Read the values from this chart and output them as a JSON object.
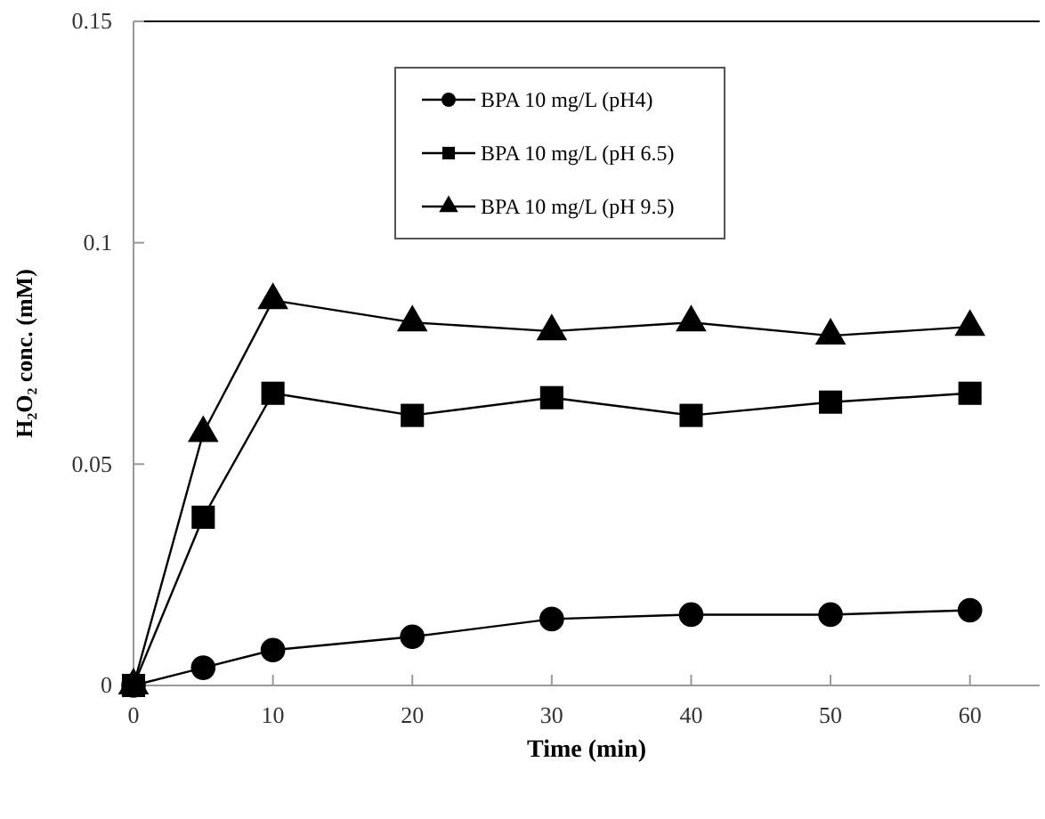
{
  "chart_data": {
    "type": "line",
    "xlabel": "Time (min)",
    "ylabel": "H₂O₂ conc. (mM)",
    "x": [
      0,
      5,
      10,
      20,
      30,
      40,
      50,
      60
    ],
    "xlim": [
      0,
      65
    ],
    "xticks": [
      0,
      10,
      20,
      30,
      40,
      50,
      60
    ],
    "ylim": [
      0,
      0.15
    ],
    "yticks": [
      0,
      0.05,
      0.1,
      0.15
    ],
    "legend": "top",
    "grid": false,
    "line_style": "solid",
    "series": [
      {
        "name": "BPA 10 mg/L (pH4)",
        "color": "#000000",
        "marker": "circle",
        "values": [
          0,
          0.004,
          0.008,
          0.011,
          0.015,
          0.016,
          0.016,
          0.017
        ]
      },
      {
        "name": "BPA 10 mg/L (pH 6.5)",
        "color": "#000000",
        "marker": "square",
        "values": [
          0,
          0.038,
          0.066,
          0.061,
          0.065,
          0.061,
          0.064,
          0.066
        ]
      },
      {
        "name": "BPA 10 mg/L (pH 9.5)",
        "color": "#000000",
        "marker": "triangle",
        "values": [
          0,
          0.057,
          0.087,
          0.082,
          0.08,
          0.082,
          0.079,
          0.081
        ]
      }
    ]
  }
}
